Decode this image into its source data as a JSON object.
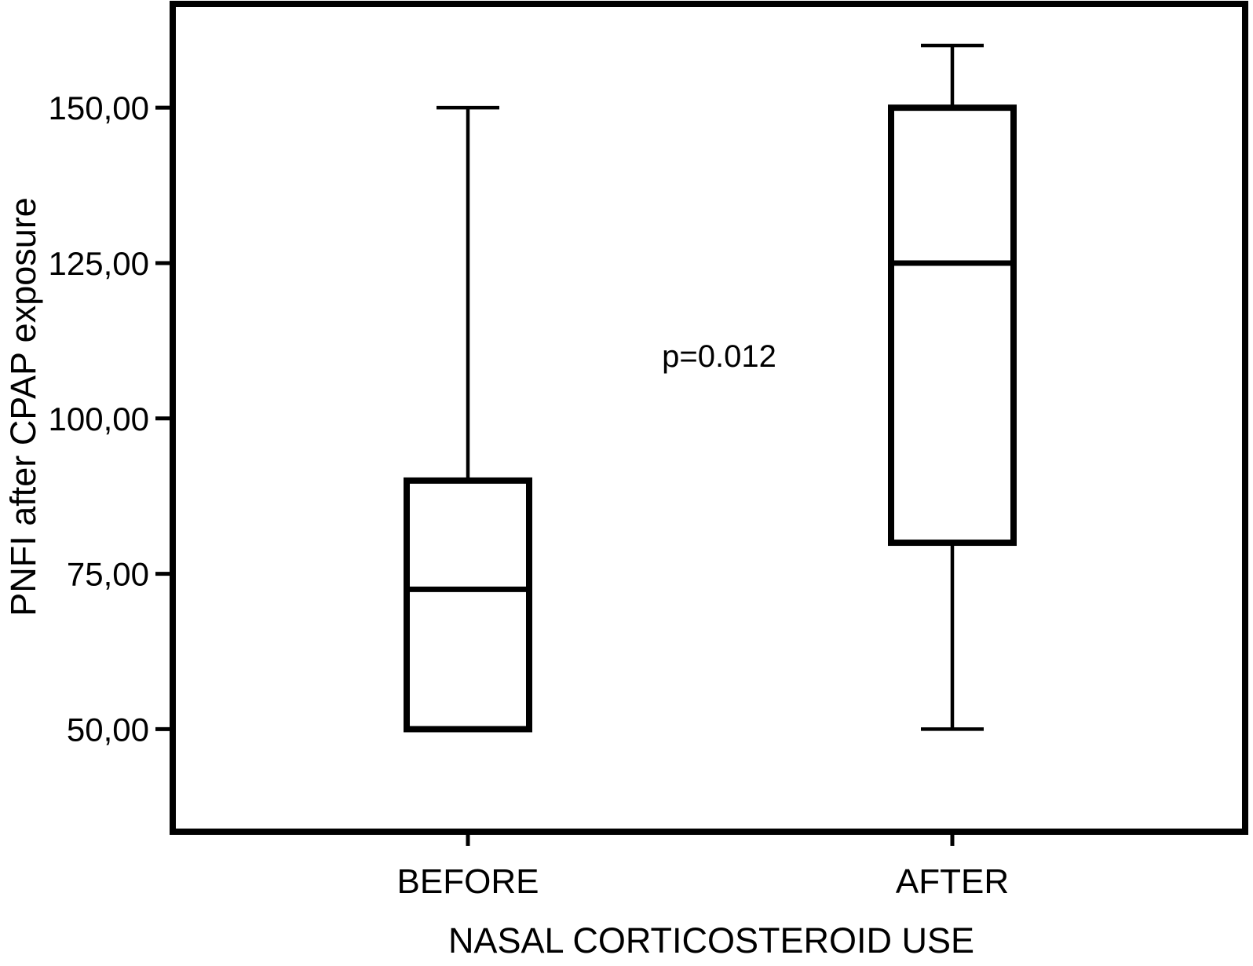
{
  "figure": {
    "background": "#ffffff",
    "line_color": "#000000"
  },
  "chart_data": {
    "type": "boxplot",
    "xlabel": "NASAL CORTICOSTEROID USE",
    "ylabel": "PNFI after CPAP exposure",
    "annotation": "p=0.012",
    "categories": [
      "BEFORE",
      "AFTER"
    ],
    "series": [
      {
        "name": "BEFORE",
        "whisker_low": 50,
        "q1": 50,
        "median": 72.5,
        "q3": 90,
        "whisker_high": 150
      },
      {
        "name": "AFTER",
        "whisker_low": 50,
        "q1": 80,
        "median": 125,
        "q3": 150,
        "whisker_high": 160
      }
    ],
    "y_ticks": [
      {
        "value": 50,
        "label": "50,00"
      },
      {
        "value": 75,
        "label": "75,00"
      },
      {
        "value": 100,
        "label": "100,00"
      },
      {
        "value": 125,
        "label": "125,00"
      },
      {
        "value": 150,
        "label": "150,00"
      }
    ],
    "ylim": [
      33.5,
      166.7
    ],
    "grid": false,
    "legend_position": "none"
  }
}
